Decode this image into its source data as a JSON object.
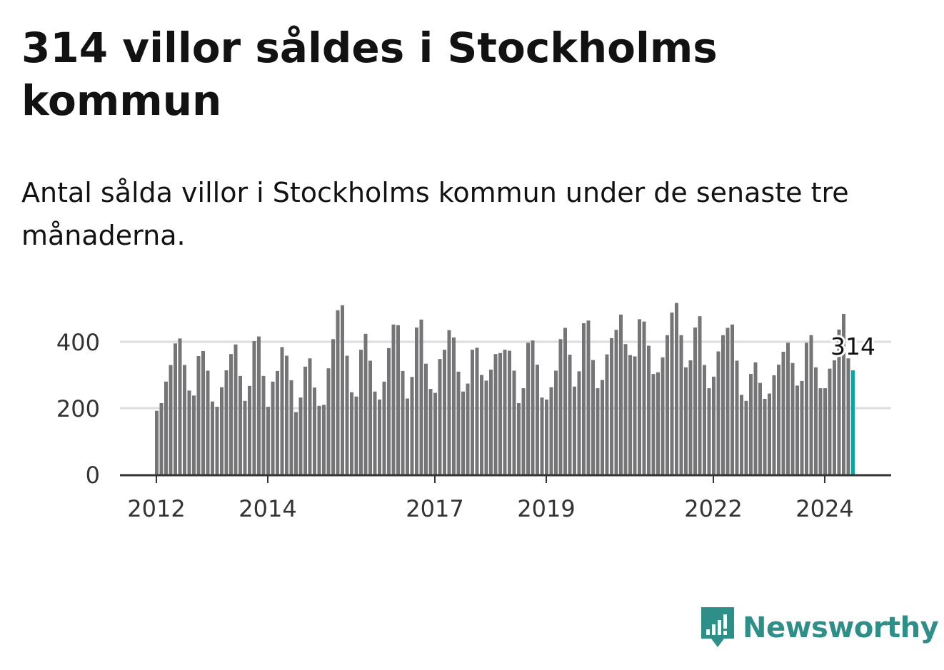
{
  "title": "314 villor såldes i Stockholms kommun",
  "subtitle": "Antal sålda villor i Stockholms kommun under de senaste tre månaderna.",
  "brand": "Newsworthy",
  "colors": {
    "bar": "#757477",
    "highlight": "#0fa3a3",
    "grid": "#dddddd",
    "axis": "#333333",
    "brand": "#2d8f88"
  },
  "chart_data": {
    "type": "bar",
    "title": "314 villor såldes i Stockholms kommun",
    "xlabel": "",
    "ylabel": "",
    "ylim": [
      0,
      550
    ],
    "yticks": [
      0,
      200,
      400
    ],
    "grid": true,
    "x_tick_labels": [
      {
        "label": "2012",
        "index": 0
      },
      {
        "label": "2014",
        "index": 24
      },
      {
        "label": "2017",
        "index": 60
      },
      {
        "label": "2019",
        "index": 84
      },
      {
        "label": "2022",
        "index": 120
      },
      {
        "label": "2024",
        "index": 144
      }
    ],
    "highlight_label": "314",
    "values": [
      192,
      215,
      280,
      330,
      395,
      410,
      330,
      253,
      238,
      357,
      372,
      313,
      220,
      204,
      263,
      314,
      363,
      392,
      297,
      222,
      267,
      402,
      416,
      297,
      204,
      280,
      312,
      384,
      358,
      284,
      188,
      232,
      325,
      350,
      262,
      207,
      210,
      320,
      408,
      495,
      510,
      358,
      248,
      235,
      376,
      424,
      343,
      250,
      226,
      280,
      381,
      452,
      450,
      312,
      229,
      294,
      443,
      467,
      334,
      258,
      246,
      348,
      376,
      435,
      413,
      310,
      250,
      274,
      376,
      382,
      300,
      283,
      316,
      363,
      366,
      376,
      373,
      313,
      215,
      260,
      397,
      404,
      331,
      232,
      226,
      263,
      313,
      408,
      442,
      361,
      265,
      311,
      456,
      464,
      345,
      260,
      285,
      362,
      411,
      436,
      482,
      393,
      360,
      356,
      468,
      461,
      388,
      303,
      308,
      353,
      420,
      488,
      517,
      420,
      323,
      344,
      443,
      477,
      330,
      260,
      295,
      371,
      420,
      442,
      452,
      343,
      240,
      222,
      303,
      338,
      276,
      228,
      244,
      299,
      331,
      370,
      397,
      336,
      268,
      282,
      397,
      420,
      323,
      260,
      260,
      319,
      344,
      437,
      484,
      350,
      314
    ]
  }
}
